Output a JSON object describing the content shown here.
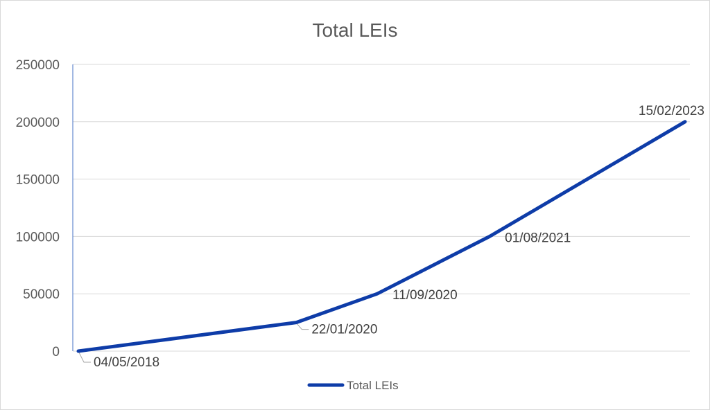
{
  "chart_data": {
    "type": "line",
    "title": "Total LEIs",
    "xlabel": "",
    "ylabel": "",
    "ylim": [
      0,
      250000
    ],
    "y_ticks": [
      "0",
      "50000",
      "100000",
      "150000",
      "200000",
      "250000"
    ],
    "grid": true,
    "legend_position": "bottom",
    "series": [
      {
        "name": "Total LEIs",
        "color": "#0E3CA8",
        "points": [
          {
            "x": "04/05/2018",
            "y": 0
          },
          {
            "x": "22/01/2020",
            "y": 25000
          },
          {
            "x": "11/09/2020",
            "y": 50000
          },
          {
            "x": "01/08/2021",
            "y": 100000
          },
          {
            "x": "15/02/2023",
            "y": 200000
          }
        ]
      }
    ]
  }
}
